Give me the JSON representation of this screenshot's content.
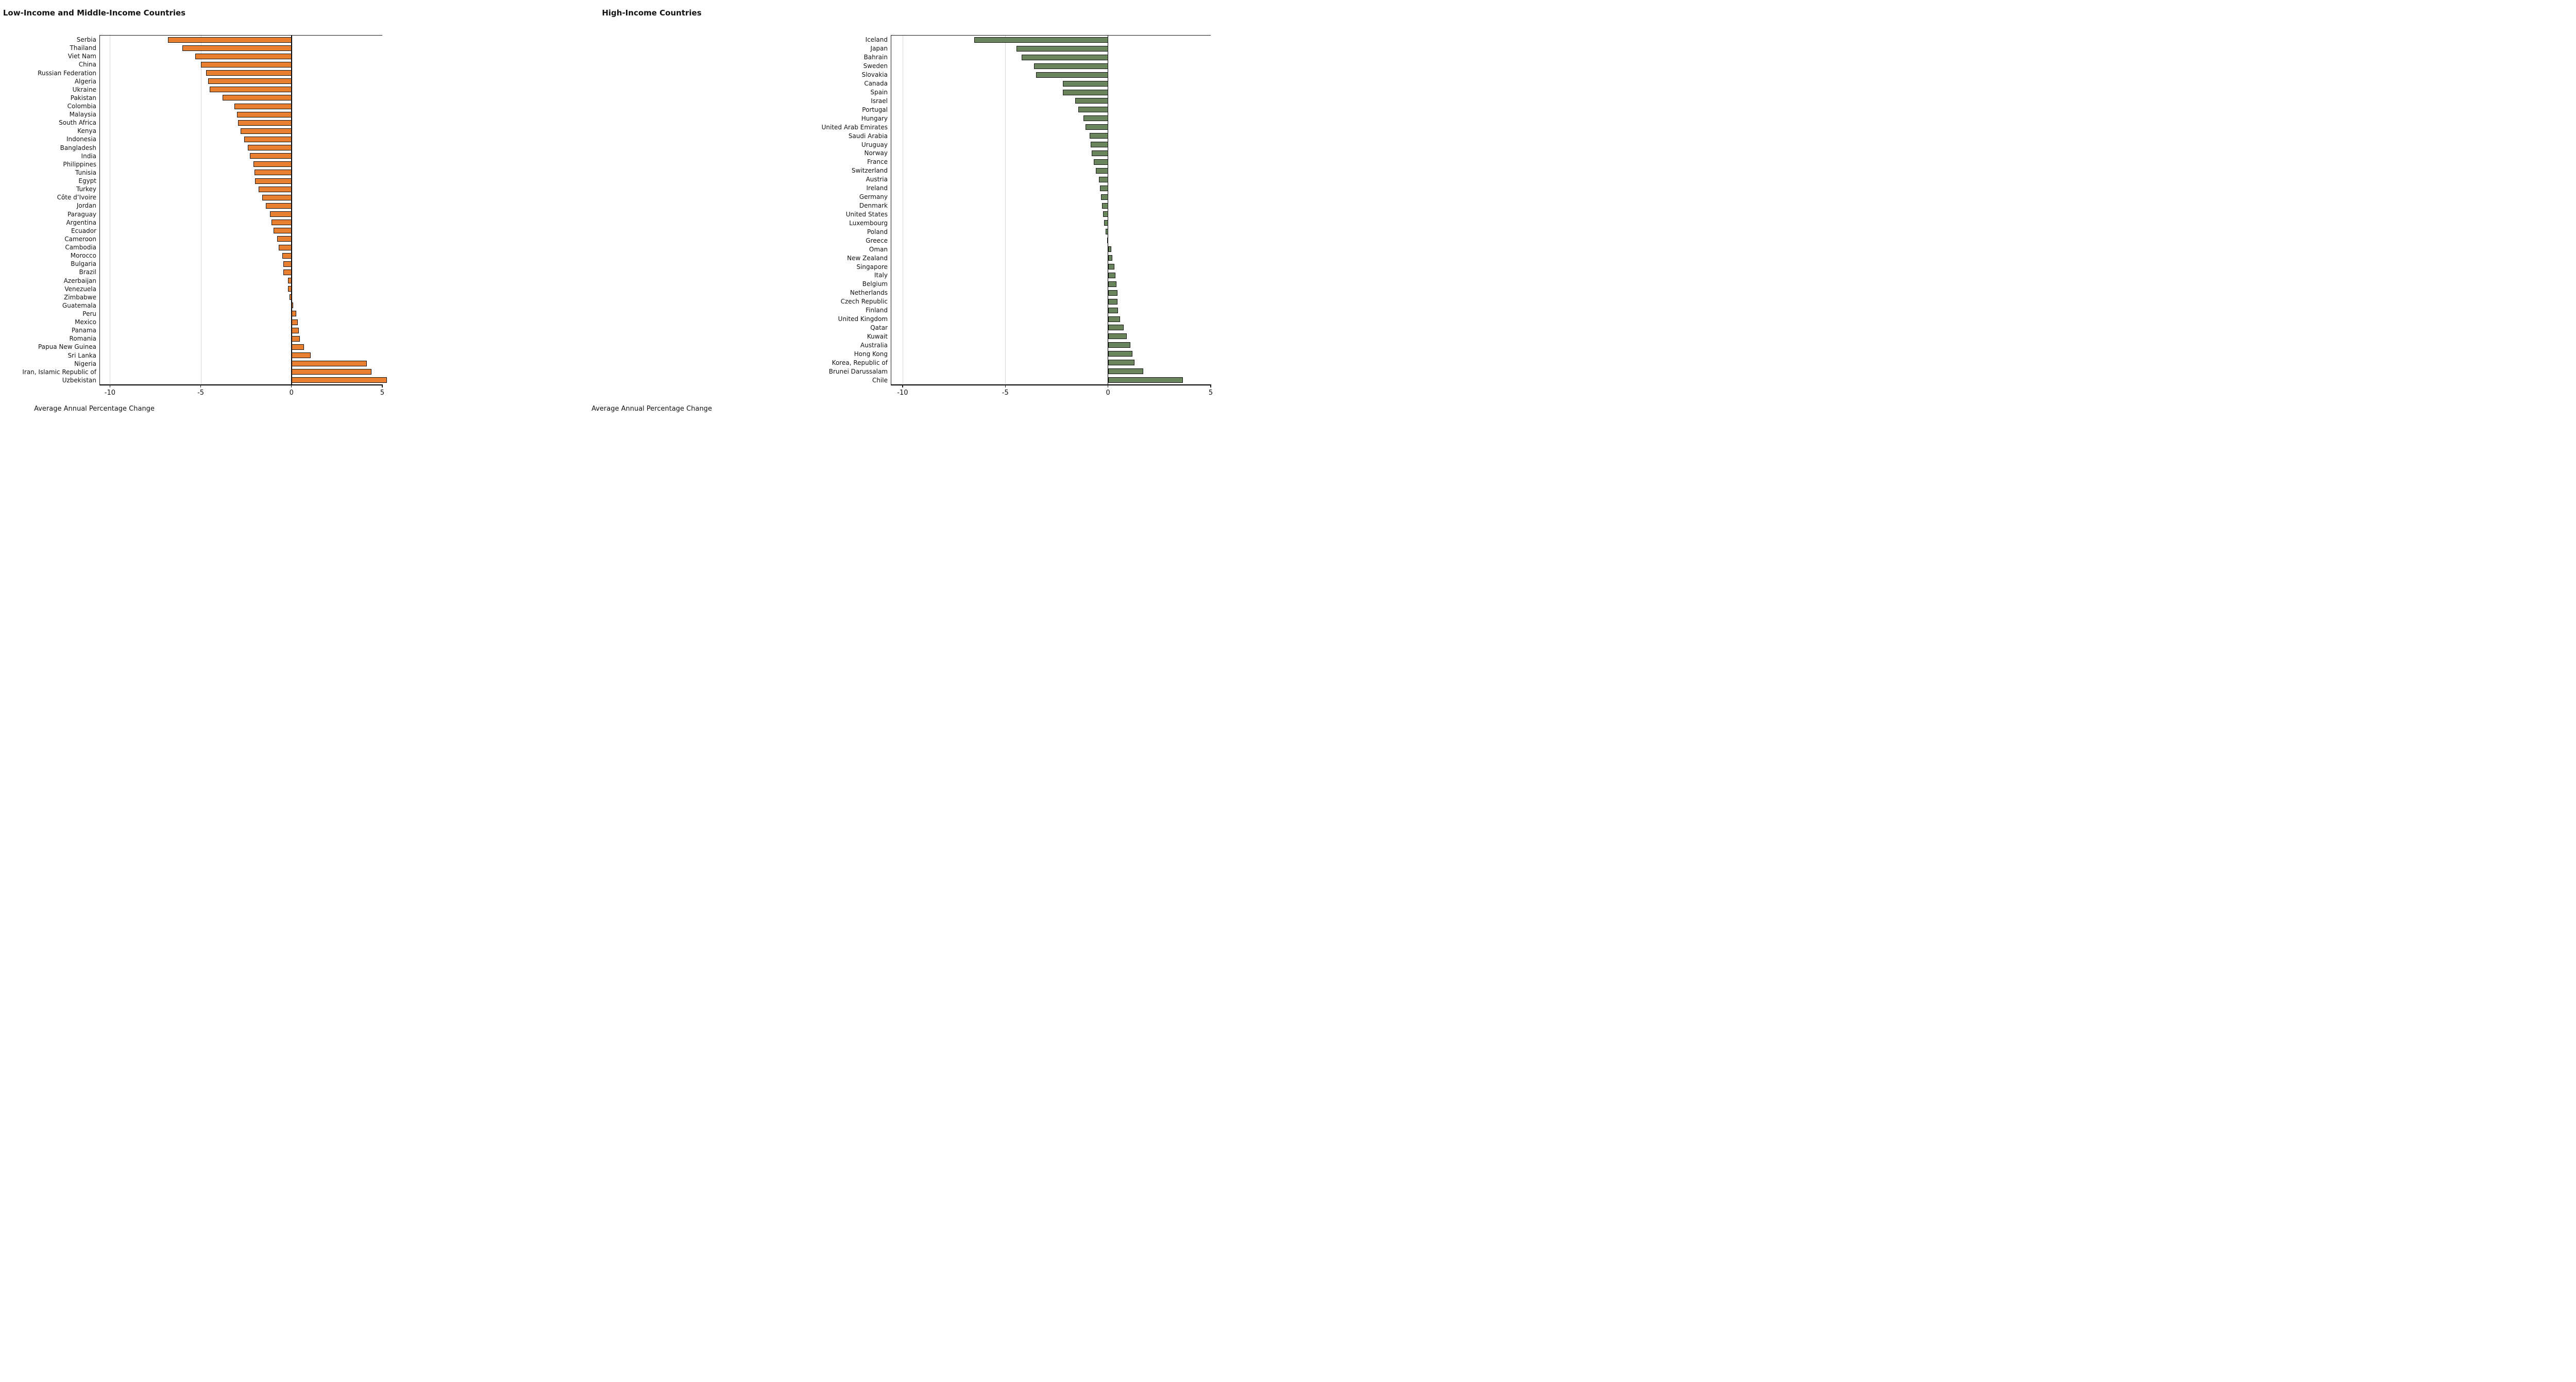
{
  "figure": {
    "xlabel": "Average Annual Percentage Change",
    "background_color": "#ffffff",
    "grid_color": "#d6d6d6",
    "axis_color": "#000000"
  },
  "chart_data": [
    {
      "type": "bar",
      "orientation": "horizontal",
      "title": "Low-Income and Middle-Income Countries",
      "xlabel": "Average Annual Percentage Change",
      "legend": "none",
      "grid": "vertical ticks only",
      "bar_color": "#E8802F",
      "bar_edge_color": "#141414",
      "xlim": [
        -10.55,
        5
      ],
      "xticks": [
        -10,
        -5,
        0,
        5
      ],
      "categories": [
        "Serbia",
        "Thailand",
        "Viet Nam",
        "China",
        "Russian Federation",
        "Algeria",
        "Ukraine",
        "Pakistan",
        "Colombia",
        "Malaysia",
        "South Africa",
        "Kenya",
        "Indonesia",
        "Bangladesh",
        "India",
        "Philippines",
        "Tunisia",
        "Egypt",
        "Turkey",
        "Côte d’Ivoire",
        "Jordan",
        "Paraguay",
        "Argentina",
        "Ecuador",
        "Cameroon",
        "Cambodia",
        "Morocco",
        "Bulgaria",
        "Brazil",
        "Azerbaijan",
        "Venezuela",
        "Zimbabwe",
        "Guatemala",
        "Peru",
        "Mexico",
        "Panama",
        "Romania",
        "Papua New Guinea",
        "Sri Lanka",
        "Nigeria",
        "Iran, Islamic Republic of",
        "Uzbekistan"
      ],
      "values": [
        -6.8,
        -6.0,
        -5.3,
        -5.0,
        -4.7,
        -4.6,
        -4.5,
        -3.8,
        -3.15,
        -3.0,
        -2.95,
        -2.8,
        -2.6,
        -2.4,
        -2.3,
        -2.1,
        -2.05,
        -2.0,
        -1.8,
        -1.6,
        -1.4,
        -1.2,
        -1.1,
        -1.0,
        -0.8,
        -0.7,
        -0.5,
        -0.45,
        -0.45,
        -0.2,
        -0.2,
        -0.1,
        0.1,
        0.25,
        0.35,
        0.4,
        0.45,
        0.7,
        1.05,
        4.15,
        4.4,
        5.25
      ]
    },
    {
      "type": "bar",
      "orientation": "horizontal",
      "title": "High-Income Countries",
      "xlabel": "Average Annual Percentage Change",
      "legend": "none",
      "grid": "vertical ticks only",
      "bar_color": "#6A845C",
      "bar_edge_color": "#141414",
      "xlim": [
        -10.55,
        5
      ],
      "xticks": [
        -10,
        -5,
        0,
        5
      ],
      "categories": [
        "Iceland",
        "Japan",
        "Bahrain",
        "Sweden",
        "Slovakia",
        "Canada",
        "Spain",
        "Israel",
        "Portugal",
        "Hungary",
        "United Arab Emirates",
        "Saudi Arabia",
        "Uruguay",
        "Norway",
        "France",
        "Switzerland",
        "Austria",
        "Ireland",
        "Germany",
        "Denmark",
        "United States",
        "Luxembourg",
        "Poland",
        "Greece",
        "Oman",
        "New Zealand",
        "Singapore",
        "Italy",
        "Belgium",
        "Netherlands",
        "Czech Republic",
        "Finland",
        "United Kingdom",
        "Qatar",
        "Kuwait",
        "Australia",
        "Hong Kong",
        "Korea, Republic of",
        "Brunei Darussalam",
        "Chile"
      ],
      "values": [
        -6.5,
        -4.45,
        -4.2,
        -3.6,
        -3.5,
        -2.2,
        -2.2,
        -1.6,
        -1.45,
        -1.2,
        -1.1,
        -0.9,
        -0.85,
        -0.8,
        -0.7,
        -0.6,
        -0.45,
        -0.4,
        -0.35,
        -0.3,
        -0.25,
        -0.2,
        -0.12,
        -0.03,
        0.15,
        0.2,
        0.3,
        0.35,
        0.42,
        0.45,
        0.45,
        0.48,
        0.58,
        0.75,
        0.9,
        1.1,
        1.2,
        1.3,
        1.72,
        3.65
      ]
    }
  ]
}
